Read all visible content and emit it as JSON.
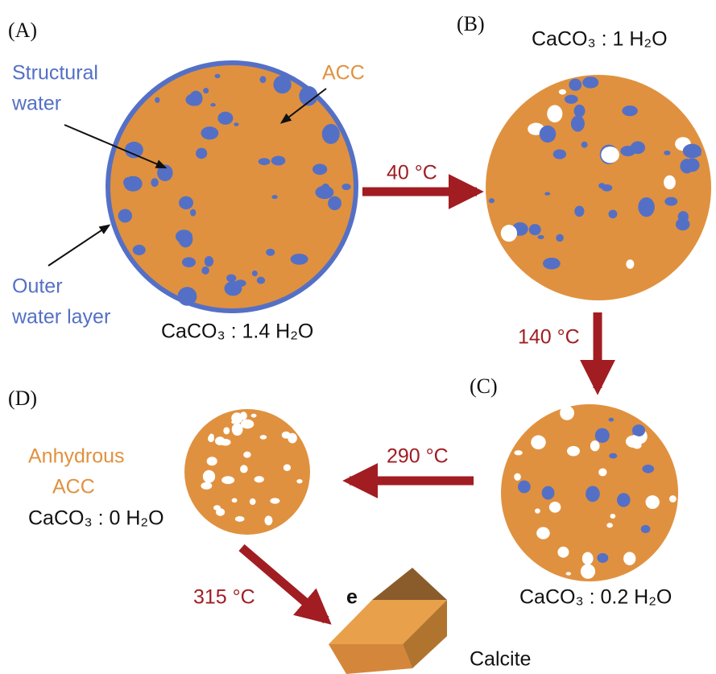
{
  "panels": [
    {
      "label": "(A)",
      "formula": "CaCO₃ : 1.4 H₂O"
    },
    {
      "label": "(B)",
      "formula": "CaCO₃ : 1 H₂O"
    },
    {
      "label": "(C)",
      "formula": "CaCO₃ : 0.2 H₂O"
    },
    {
      "label": "(D)",
      "formula": "CaCO₃ : 0 H₂O"
    }
  ],
  "annotations": {
    "structural_water": [
      "Structural",
      "water"
    ],
    "acc": "ACC",
    "outer_water_layer": [
      "Outer",
      "water layer"
    ],
    "anhydrous_acc": [
      "Anhydrous",
      "ACC"
    ],
    "product_label": "e",
    "product": "Calcite"
  },
  "transitions": [
    "40 °C",
    "140 °C",
    "290 °C",
    "315 °C"
  ]
}
